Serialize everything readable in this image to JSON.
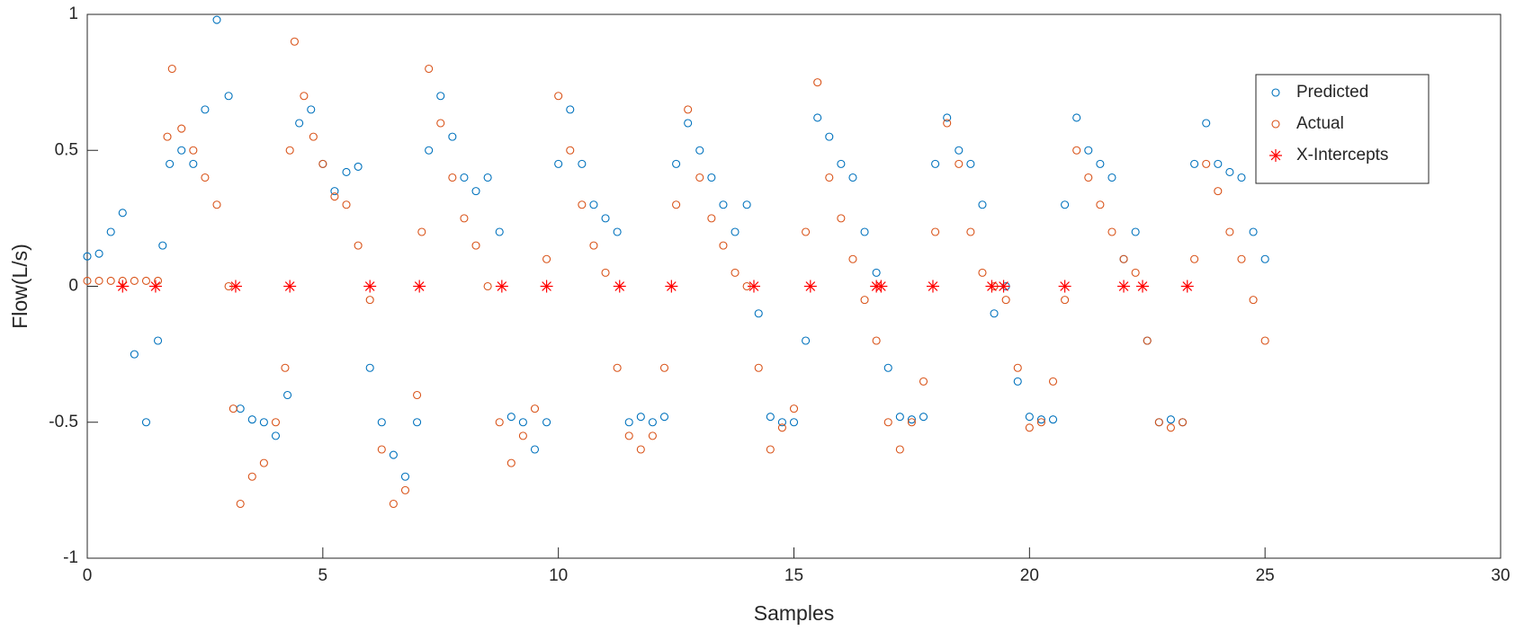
{
  "chart_data": {
    "type": "scatter",
    "xlabel": "Samples",
    "ylabel": "Flow(L/s)",
    "xlim": [
      0,
      30
    ],
    "xticks": [
      0,
      5,
      10,
      15,
      20,
      25,
      30
    ],
    "ylim": [
      -1,
      1
    ],
    "yticks": [
      -1,
      {
        "value": -0.5,
        "label": "-0.5"
      },
      0,
      {
        "value": 0.5,
        "label": "0.5"
      },
      1
    ],
    "legend": "upper right",
    "series": [
      {
        "name": "Predicted",
        "color": "#0072BD",
        "marker": "circle",
        "x": [
          0,
          0.25,
          0.5,
          0.75,
          1,
          1.25,
          1.5,
          1.6,
          1.75,
          2,
          2.25,
          2.5,
          2.75,
          3,
          3.25,
          3.5,
          3.75,
          4,
          4.25,
          4.5,
          4.75,
          5,
          5.25,
          5.5,
          5.75,
          6,
          6.25,
          6.5,
          6.75,
          7,
          7.25,
          7.5,
          7.75,
          8,
          8.25,
          8.5,
          8.75,
          9,
          9.25,
          9.5,
          9.75,
          10,
          10.25,
          10.5,
          10.75,
          11,
          11.25,
          11.5,
          11.75,
          12,
          12.25,
          12.5,
          12.75,
          13,
          13.25,
          13.5,
          13.75,
          14,
          14.25,
          14.5,
          14.75,
          15,
          15.25,
          15.5,
          15.75,
          16,
          16.25,
          16.5,
          16.75,
          17,
          17.25,
          17.5,
          17.75,
          18,
          18.25,
          18.5,
          18.75,
          19,
          19.25,
          19.5,
          19.75,
          20,
          20.25,
          20.5,
          20.75,
          21,
          21.25,
          21.5,
          21.75,
          22,
          22.25,
          22.5,
          22.75,
          23,
          23.25,
          23.5,
          23.75,
          24,
          24.25,
          24.5,
          24.75,
          25
        ],
        "values": [
          0.11,
          0.12,
          0.2,
          0.27,
          -0.25,
          -0.5,
          -0.2,
          0.15,
          0.45,
          0.5,
          0.45,
          0.65,
          0.98,
          0.7,
          -0.45,
          -0.49,
          -0.5,
          -0.55,
          -0.4,
          0.6,
          0.65,
          0.45,
          0.35,
          0.42,
          0.44,
          -0.3,
          -0.5,
          -0.62,
          -0.7,
          -0.5,
          0.5,
          0.7,
          0.55,
          0.4,
          0.35,
          0.4,
          0.2,
          -0.48,
          -0.5,
          -0.6,
          -0.5,
          0.45,
          0.65,
          0.45,
          0.3,
          0.25,
          0.2,
          -0.5,
          -0.48,
          -0.5,
          -0.48,
          0.45,
          0.6,
          0.5,
          0.4,
          0.3,
          0.2,
          0.3,
          -0.1,
          -0.48,
          -0.5,
          -0.5,
          -0.2,
          0.62,
          0.55,
          0.45,
          0.4,
          0.2,
          0.05,
          -0.3,
          -0.48,
          -0.49,
          -0.48,
          0.45,
          0.62,
          0.5,
          0.45,
          0.3,
          -0.1,
          0,
          -0.35,
          -0.48,
          -0.49,
          -0.49,
          0.3,
          0.62,
          0.5,
          0.45,
          0.4,
          0.1,
          0.2,
          -0.2,
          -0.5,
          -0.49,
          -0.5,
          0.45,
          0.6,
          0.45,
          0.42,
          0.4,
          0.2,
          0.1
        ]
      },
      {
        "name": "Actual",
        "color": "#D95319",
        "marker": "circle",
        "x": [
          0,
          0.25,
          0.5,
          0.75,
          1,
          1.25,
          1.5,
          1.7,
          1.8,
          2,
          2.25,
          2.5,
          2.75,
          3,
          3.1,
          3.25,
          3.5,
          3.75,
          4,
          4.2,
          4.3,
          4.4,
          4.6,
          4.8,
          5,
          5.25,
          5.5,
          5.75,
          6,
          6.25,
          6.5,
          6.75,
          7,
          7.1,
          7.25,
          7.5,
          7.75,
          8,
          8.25,
          8.5,
          8.75,
          9,
          9.25,
          9.5,
          9.75,
          10,
          10.25,
          10.5,
          10.75,
          11,
          11.25,
          11.5,
          11.75,
          12,
          12.25,
          12.5,
          12.75,
          13,
          13.25,
          13.5,
          13.75,
          14,
          14.25,
          14.5,
          14.75,
          15,
          15.25,
          15.5,
          15.75,
          16,
          16.25,
          16.5,
          16.75,
          17,
          17.25,
          17.5,
          17.75,
          18,
          18.25,
          18.5,
          18.75,
          19,
          19.25,
          19.5,
          19.75,
          20,
          20.25,
          20.5,
          20.75,
          21,
          21.25,
          21.5,
          21.75,
          22,
          22.25,
          22.5,
          22.75,
          23,
          23.25,
          23.5,
          23.75,
          24,
          24.25,
          24.5,
          24.75,
          25
        ],
        "values": [
          0.02,
          0.02,
          0.02,
          0.02,
          0.02,
          0.02,
          0.02,
          0.55,
          0.8,
          0.58,
          0.5,
          0.4,
          0.3,
          0,
          -0.45,
          -0.8,
          -0.7,
          -0.65,
          -0.5,
          -0.3,
          0.5,
          0.9,
          0.7,
          0.55,
          0.45,
          0.33,
          0.3,
          0.15,
          -0.05,
          -0.6,
          -0.8,
          -0.75,
          -0.4,
          0.2,
          0.8,
          0.6,
          0.4,
          0.25,
          0.15,
          0,
          -0.5,
          -0.65,
          -0.55,
          -0.45,
          0.1,
          0.7,
          0.5,
          0.3,
          0.15,
          0.05,
          -0.3,
          -0.55,
          -0.6,
          -0.55,
          -0.3,
          0.3,
          0.65,
          0.4,
          0.25,
          0.15,
          0.05,
          0,
          -0.3,
          -0.6,
          -0.52,
          -0.45,
          0.2,
          0.75,
          0.4,
          0.25,
          0.1,
          -0.05,
          -0.2,
          -0.5,
          -0.6,
          -0.5,
          -0.35,
          0.2,
          0.6,
          0.45,
          0.2,
          0.05,
          0,
          -0.05,
          -0.3,
          -0.52,
          -0.5,
          -0.35,
          -0.05,
          0.5,
          0.4,
          0.3,
          0.2,
          0.1,
          0.05,
          -0.2,
          -0.5,
          -0.52,
          -0.5,
          0.1,
          0.45,
          0.35,
          0.2,
          0.1,
          -0.05,
          -0.2
        ]
      },
      {
        "name": "X-Intercepts",
        "color": "#FF0000",
        "marker": "star",
        "x": [
          0.75,
          1.45,
          3.15,
          4.3,
          6,
          7.05,
          8.8,
          9.75,
          11.3,
          12.4,
          14.15,
          15.35,
          16.75,
          16.85,
          17.95,
          19.2,
          19.45,
          20.75,
          22,
          22.4,
          23.35
        ],
        "values": [
          0,
          0,
          0,
          0,
          0,
          0,
          0,
          0,
          0,
          0,
          0,
          0,
          0,
          0,
          0,
          0,
          0,
          0,
          0,
          0,
          0
        ]
      }
    ]
  }
}
